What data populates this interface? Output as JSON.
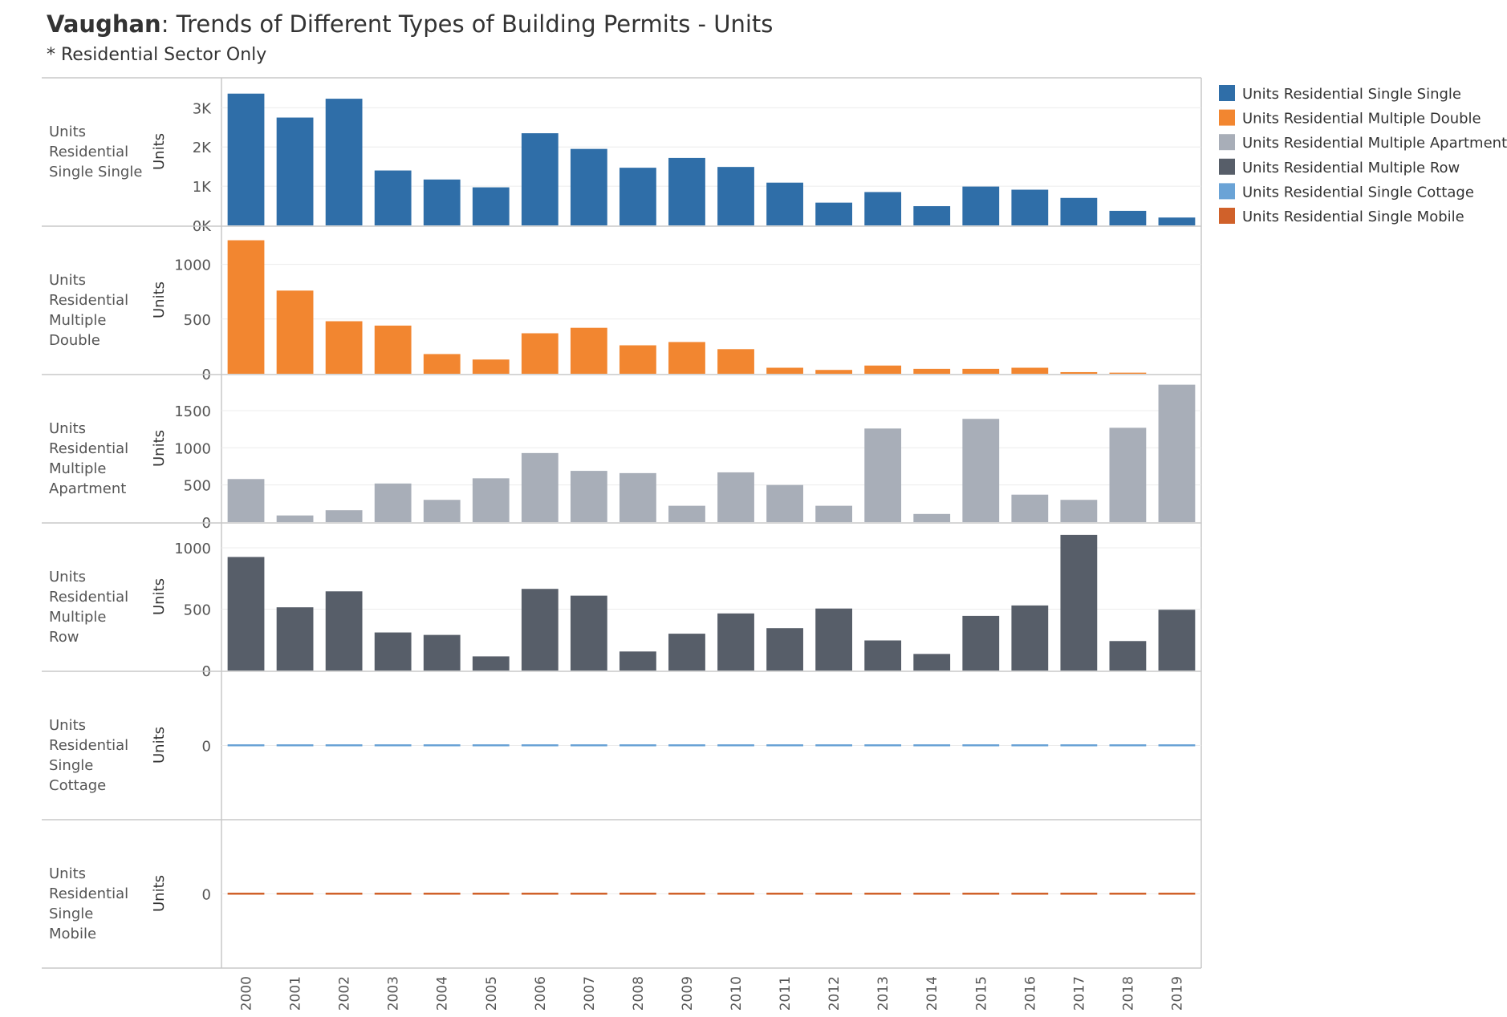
{
  "title": {
    "bold": "Vaughan",
    "rest": ": Trends of Different Types of  Building Permits - Units",
    "subtitle": "* Residential Sector Only"
  },
  "legend": [
    {
      "label": "Units Residential Single Single",
      "color": "#2f6ea8"
    },
    {
      "label": "Units Residential Multiple Double",
      "color": "#f28630"
    },
    {
      "label": "Units Residential Multiple Apartment",
      "color": "#a8aeb8"
    },
    {
      "label": "Units Residential Multiple Row",
      "color": "#575e69"
    },
    {
      "label": "Units Residential Single Cottage",
      "color": "#6aa3d6"
    },
    {
      "label": "Units Residential Single Mobile",
      "color": "#d0612a"
    }
  ],
  "chart_data": {
    "type": "bar",
    "legend_position": "right",
    "categories": [
      "2000",
      "2001",
      "2002",
      "2003",
      "2004",
      "2005",
      "2006",
      "2007",
      "2008",
      "2009",
      "2010",
      "2011",
      "2012",
      "2013",
      "2014",
      "2015",
      "2016",
      "2017",
      "2018",
      "2019"
    ],
    "panels": [
      {
        "name": "Units Residential Single Single",
        "label_lines": [
          "Units",
          "Residential",
          "Single Single"
        ],
        "ylabel": "Units",
        "color": "#2f6ea8",
        "ylim": [
          0,
          3600
        ],
        "ticks": [
          {
            "v": 0,
            "label": "0K"
          },
          {
            "v": 1000,
            "label": "1K"
          },
          {
            "v": 2000,
            "label": "2K"
          },
          {
            "v": 3000,
            "label": "3K"
          }
        ],
        "values": [
          3360,
          2750,
          3230,
          1400,
          1170,
          970,
          2350,
          1950,
          1470,
          1720,
          1490,
          1090,
          580,
          850,
          490,
          990,
          910,
          700,
          370,
          200
        ]
      },
      {
        "name": "Units Residential Multiple Double",
        "label_lines": [
          "Units",
          "Residential",
          "Multiple",
          "Double"
        ],
        "ylabel": "Units",
        "color": "#f28630",
        "ylim": [
          0,
          1290
        ],
        "ticks": [
          {
            "v": 0,
            "label": "0"
          },
          {
            "v": 500,
            "label": "500"
          },
          {
            "v": 1000,
            "label": "1000"
          }
        ],
        "values": [
          1220,
          760,
          480,
          440,
          180,
          130,
          370,
          420,
          260,
          290,
          225,
          55,
          35,
          75,
          45,
          45,
          55,
          15,
          10,
          0
        ]
      },
      {
        "name": "Units Residential Multiple Apartment",
        "label_lines": [
          "Units",
          "Residential",
          "Multiple",
          "Apartment"
        ],
        "ylabel": "Units",
        "color": "#a8aeb8",
        "ylim": [
          0,
          1900
        ],
        "ticks": [
          {
            "v": 0,
            "label": "0"
          },
          {
            "v": 500,
            "label": "500"
          },
          {
            "v": 1000,
            "label": "1000"
          },
          {
            "v": 1500,
            "label": "1500"
          }
        ],
        "values": [
          580,
          90,
          160,
          520,
          300,
          590,
          930,
          690,
          660,
          220,
          670,
          500,
          220,
          1260,
          110,
          1390,
          370,
          300,
          1270,
          1850
        ]
      },
      {
        "name": "Units Residential Multiple Row",
        "label_lines": [
          "Units",
          "Residential",
          "Multiple",
          "Row"
        ],
        "ylabel": "Units",
        "color": "#575e69",
        "ylim": [
          0,
          1150
        ],
        "ticks": [
          {
            "v": 0,
            "label": "0"
          },
          {
            "v": 500,
            "label": "500"
          },
          {
            "v": 1000,
            "label": "1000"
          }
        ],
        "values": [
          925,
          515,
          645,
          310,
          290,
          115,
          665,
          610,
          155,
          300,
          465,
          345,
          505,
          245,
          135,
          445,
          530,
          1105,
          240,
          495
        ]
      },
      {
        "name": "Units Residential Single Cottage",
        "label_lines": [
          "Units",
          "Residential",
          "Single",
          "Cottage"
        ],
        "ylabel": "Units",
        "color": "#6aa3d6",
        "ylim": [
          -1,
          1
        ],
        "ticks": [
          {
            "v": 0,
            "label": "0"
          }
        ],
        "values": [
          0,
          0,
          0,
          0,
          0,
          0,
          0,
          0,
          0,
          0,
          0,
          0,
          0,
          0,
          0,
          0,
          0,
          0,
          0,
          0
        ]
      },
      {
        "name": "Units Residential Single Mobile",
        "label_lines": [
          "Units",
          "Residential",
          "Single",
          "Mobile"
        ],
        "ylabel": "Units",
        "color": "#d0612a",
        "ylim": [
          -1,
          1
        ],
        "ticks": [
          {
            "v": 0,
            "label": "0"
          }
        ],
        "values": [
          0,
          0,
          0,
          0,
          0,
          0,
          0,
          0,
          0,
          0,
          0,
          0,
          0,
          0,
          0,
          0,
          0,
          0,
          0,
          0
        ]
      }
    ]
  }
}
